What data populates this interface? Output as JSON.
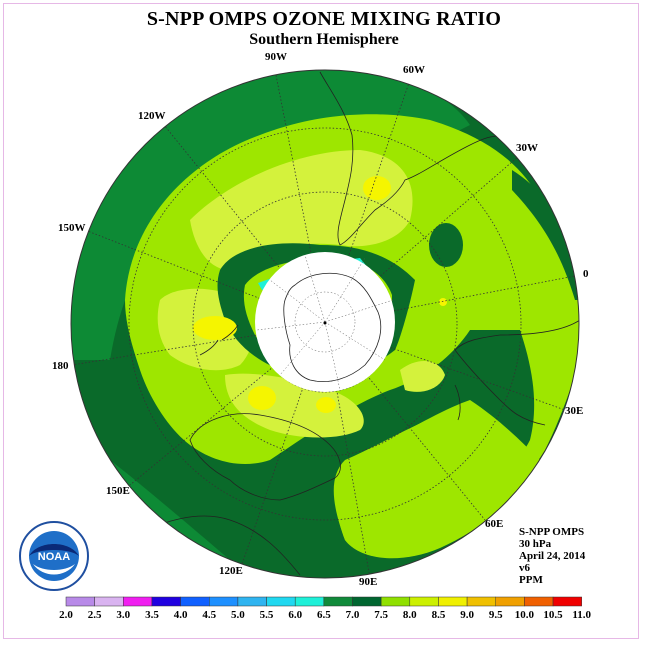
{
  "title": "S-NPP OMPS OZONE MIXING RATIO",
  "subtitle": "Southern Hemisphere",
  "longitude_labels": {
    "w90": "90W",
    "w60": "60W",
    "w30": "30W",
    "zero": "0",
    "e30": "30E",
    "e60": "60E",
    "e90": "90E",
    "e120": "120E",
    "e150": "150E",
    "deg180": "180",
    "w150": "150W",
    "w120": "120W"
  },
  "info": {
    "product": "S-NPP OMPS",
    "level": "30 hPa",
    "date": "April 24, 2014",
    "version": "v6",
    "units": "PPM"
  },
  "logo_text": "NOAA",
  "colorbar": {
    "labels": [
      "2.0",
      "2.5",
      "3.0",
      "3.5",
      "4.0",
      "4.5",
      "5.0",
      "5.5",
      "6.0",
      "6.5",
      "7.0",
      "7.5",
      "8.0",
      "8.5",
      "9.0",
      "9.5",
      "10.0",
      "10.5",
      "11.0"
    ],
    "colors": [
      "#b88ae8",
      "#d9b3f0",
      "#f01ef0",
      "#2000e0",
      "#1060ff",
      "#1e90ff",
      "#2fb4f0",
      "#20d8f0",
      "#1ef0d8",
      "#108a3a",
      "#006630",
      "#90e000",
      "#ccf000",
      "#f0f000",
      "#f0c000",
      "#f0a000",
      "#f06000",
      "#f00000",
      "#8b4a2b"
    ]
  },
  "colors": {
    "dark_green": "#0a6a2a",
    "green": "#0d8a35",
    "light_green": "#9ee600",
    "yellow_green": "#d4f23c",
    "yellow": "#f5f500",
    "cyan": "#1ef0d8",
    "white_polar_cap": "#ffffff"
  }
}
